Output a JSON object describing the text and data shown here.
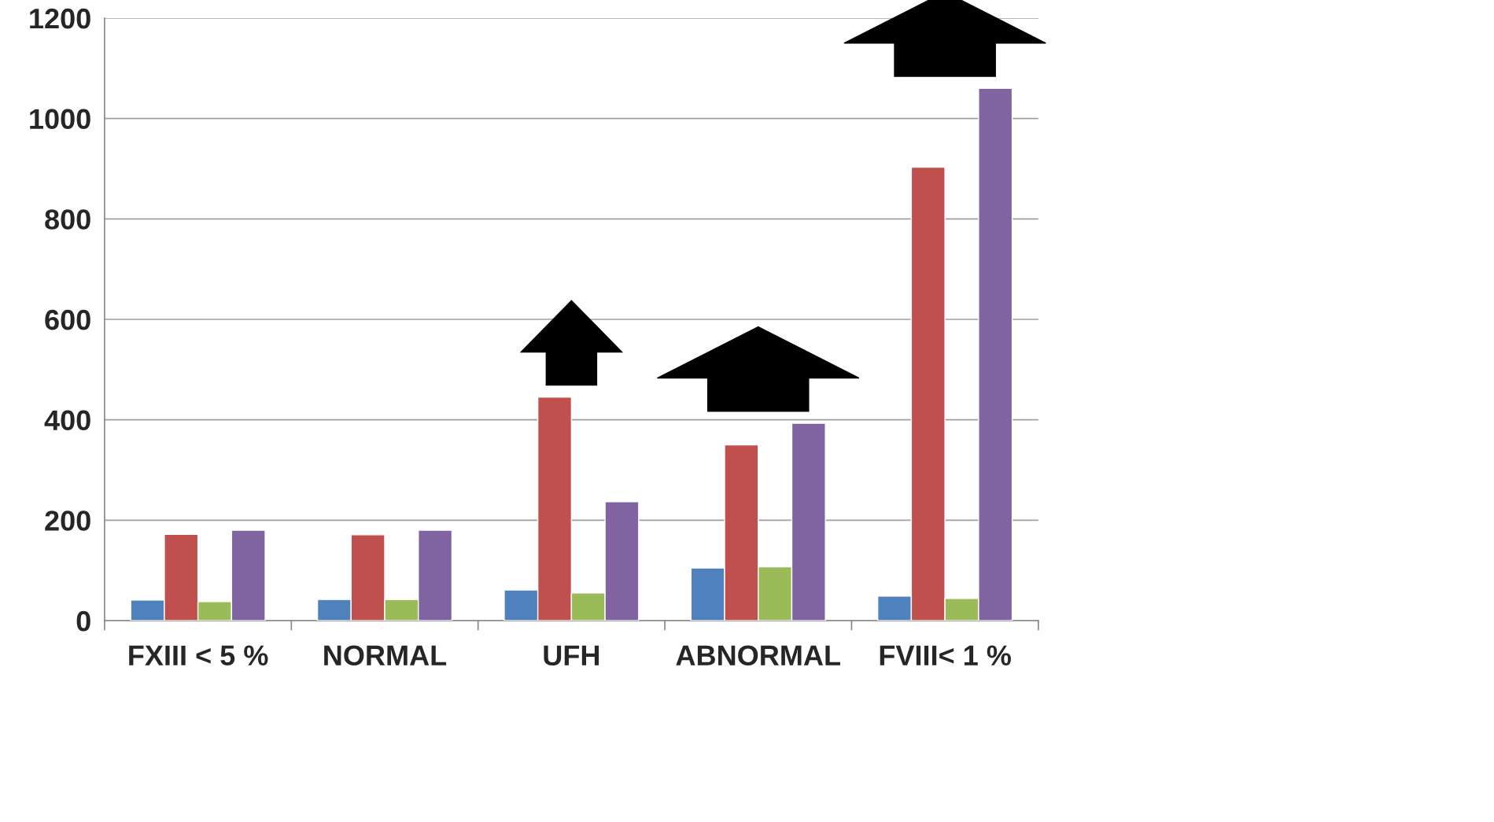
{
  "chart_data": {
    "type": "bar",
    "categories": [
      "FXIII < 5 %",
      "NORMAL",
      "UFH",
      "ABNORMAL",
      "FVIII< 1 %"
    ],
    "series": [
      {
        "color": "#4f81bd",
        "values": [
          41,
          42,
          61,
          105,
          49
        ]
      },
      {
        "color": "#c0504d",
        "values": [
          172,
          171,
          445,
          350,
          903
        ]
      },
      {
        "color": "#9bbb59",
        "values": [
          38,
          42,
          55,
          107,
          44
        ]
      },
      {
        "color": "#8064a2",
        "values": [
          180,
          180,
          237,
          393,
          1060
        ]
      }
    ],
    "ylim": [
      0,
      1200
    ],
    "yticks": [
      0,
      200,
      400,
      600,
      800,
      1000,
      1200
    ],
    "grid": "y"
  }
}
